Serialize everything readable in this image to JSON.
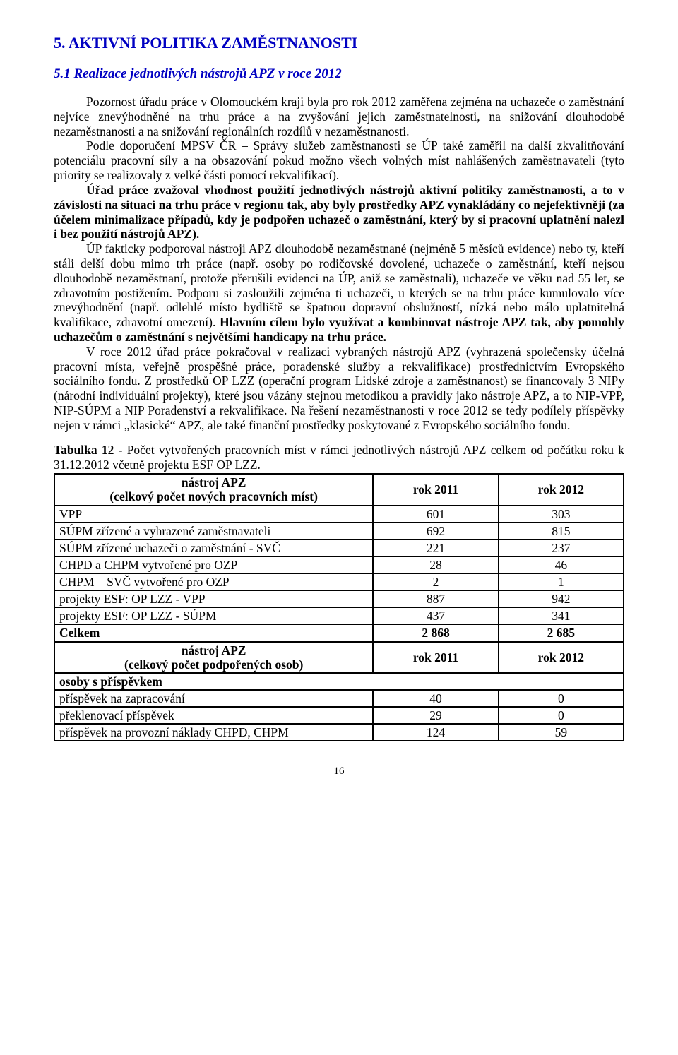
{
  "heading": {
    "h1": "5. AKTIVNÍ POLITIKA ZAMĚSTNANOSTI",
    "h2": "5.1 Realizace jednotlivých nástrojů APZ v roce 2012"
  },
  "para1": "Pozornost úřadu práce v Olomouckém kraji byla pro rok 2012 zaměřena zejména na uchazeče o zaměstnání nejvíce znevýhodněné na trhu práce a na zvyšování jejich zaměstnatelnosti, na snižování dlouhodobé nezaměstnanosti a na snižování regionálních rozdílů v nezaměstnanosti.",
  "para2": "Podle doporučení MPSV ČR – Správy služeb zaměstnanosti se ÚP také zaměřil na další zkvalitňování potenciálu pracovní síly a na obsazování pokud možno všech volných míst nahlášených zaměstnavateli (tyto priority se realizovaly z velké části pomocí rekvalifikací).",
  "para3": "Úřad  práce  zvažoval  vhodnost  použití  jednotlivých  nástrojů  aktivní  politiky zaměstnanosti, a to v závislosti na situaci na trhu práce v regionu tak, aby byly prostředky APZ  vynakládány  co  nejefektivněji  (za  účelem  minimalizace  případů,  kdy  je  podpořen uchazeč o zaměstnání, který by si pracovní uplatnění nalezl i bez použití nástrojů APZ).",
  "para4a": "ÚP fakticky podporoval nástroji APZ dlouhodobě nezaměstnané (nejméně 5 měsíců evidence) nebo ty, kteří stáli delší dobu mimo trh práce (např. osoby po rodičovské dovolené, uchazeče o zaměstnání, kteří nejsou dlouhodobě nezaměstnaní, protože přerušili evidenci na ÚP, aniž se zaměstnali), uchazeče ve věku nad 55 let, se zdravotním postižením. Podporu si zasloužili zejména ti uchazeči, u kterých se na trhu práce kumulovalo více znevýhodnění (např. odlehlé místo  bydliště  se  špatnou  dopravní  obslužností,  nízká  nebo  málo  uplatnitelná  kvalifikace, zdravotní omezení). ",
  "para4b": "Hlavním cílem bylo využívat a kombinovat nástroje APZ tak, aby pomohly uchazečům o zaměstnání s největšími handicapy na trhu práce.",
  "para5": "V roce 2012 úřad práce pokračoval v realizaci vybraných nástrojů APZ (vyhrazená společensky účelná pracovní místa, veřejně prospěšné práce, poradenské služby a rekvalifikace) prostřednictvím Evropského sociálního fondu. Z prostředků OP LZZ (operační program Lidské zdroje a zaměstnanost) se financovaly 3 NIPy (národní individuální projekty), které jsou vázány stejnou metodikou a pravidly jako nástroje APZ, a to NIP-VPP, NIP-SÚPM a NIP Poradenství a rekvalifikace. Na řešení nezaměstnanosti v roce 2012 se tedy podílely příspěvky nejen v rámci „klasické“ APZ, ale také finanční prostředky poskytované z Evropského sociálního fondu.",
  "table": {
    "caption_prefix_bold": "Tabulka 12",
    "caption_rest": " - Počet vytvořených pracovních míst v rámci jednotlivých nástrojů APZ  celkem od počátku roku k 31.12.2012 včetně projektu ESF OP LZZ.",
    "header1": {
      "col1_line1": "nástroj APZ",
      "col1_line2": "(celkový počet nových pracovních míst)",
      "col2": "rok 2011",
      "col3": "rok 2012"
    },
    "rows1": [
      {
        "label": "VPP",
        "v2011": "601",
        "v2012": "303"
      },
      {
        "label": "SÚPM zřízené a vyhrazené zaměstnavateli",
        "v2011": "692",
        "v2012": "815"
      },
      {
        "label": "SÚPM zřízené uchazeči o zaměstnání - SVČ",
        "v2011": "221",
        "v2012": "237"
      },
      {
        "label": "CHPD a CHPM vytvořené pro OZP",
        "v2011": "28",
        "v2012": "46"
      },
      {
        "label": "CHPM – SVČ vytvořené pro OZP",
        "v2011": "2",
        "v2012": "1"
      },
      {
        "label": "projekty ESF: OP LZZ - VPP",
        "v2011": "887",
        "v2012": "942"
      },
      {
        "label": "projekty ESF: OP LZZ - SÚPM",
        "v2011": "437",
        "v2012": "341"
      }
    ],
    "total1": {
      "label": "Celkem",
      "v2011": "2 868",
      "v2012": "2 685"
    },
    "header2": {
      "col1_line1": "nástroj APZ",
      "col1_line2": "(celkový počet podpořených osob)",
      "col2": "rok 2011",
      "col3": "rok 2012"
    },
    "sub2": "osoby s příspěvkem",
    "rows2": [
      {
        "label": "příspěvek na zapracování",
        "v2011": "40",
        "v2012": "0"
      },
      {
        "label": "překlenovací příspěvek",
        "v2011": "29",
        "v2012": "0"
      },
      {
        "label": "příspěvek na provozní náklady CHPD, CHPM",
        "v2011": "124",
        "v2012": "59"
      }
    ],
    "border_color": "#000000",
    "text_color": "#000000",
    "font_size_pt": 13
  },
  "page_number": "16",
  "colors": {
    "heading": "#0000c2",
    "body": "#000000",
    "background": "#ffffff"
  }
}
